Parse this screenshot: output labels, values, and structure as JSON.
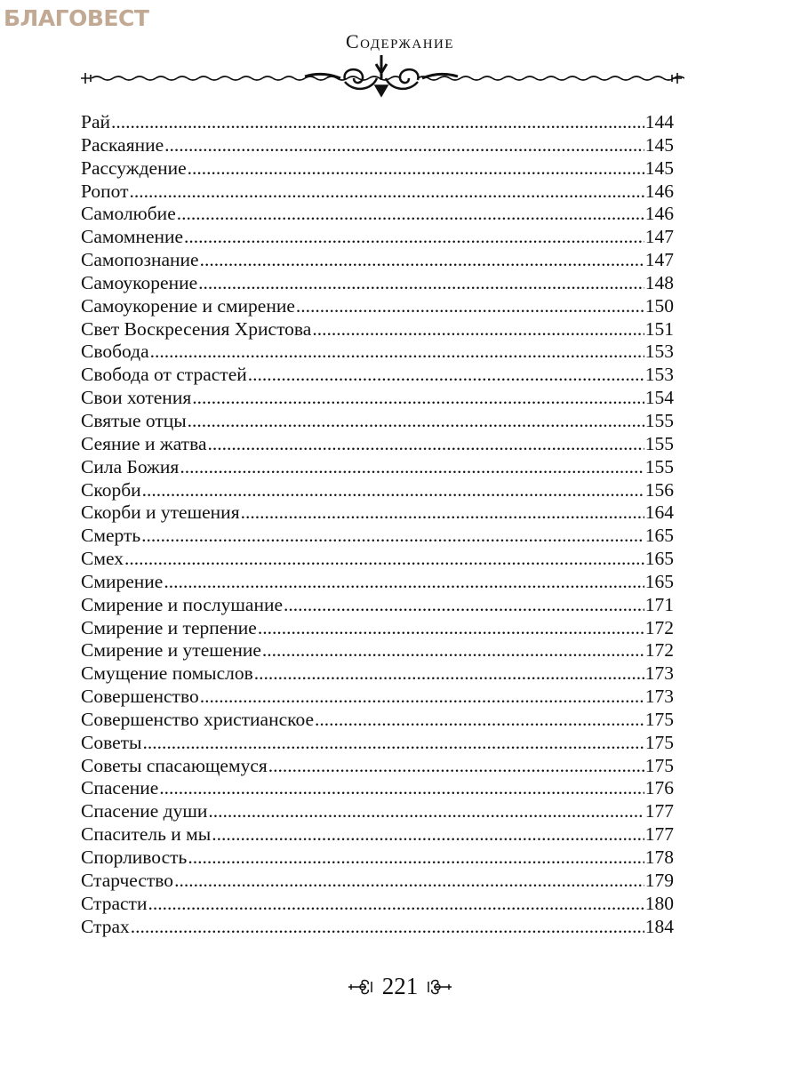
{
  "watermark": "БЛАГОВЕСТ",
  "title": "Содержание",
  "entries": [
    {
      "label": "Рай",
      "page": "144"
    },
    {
      "label": "Раскаяние",
      "page": "145"
    },
    {
      "label": "Рассуждение",
      "page": "145"
    },
    {
      "label": "Ропот",
      "page": "146"
    },
    {
      "label": "Самолюбие",
      "page": "146"
    },
    {
      "label": "Самомнение",
      "page": "147"
    },
    {
      "label": "Самопознание",
      "page": "147"
    },
    {
      "label": "Самоукорение",
      "page": "148"
    },
    {
      "label": "Самоукорение и смирение",
      "page": "150"
    },
    {
      "label": "Свет Воскресения Христова",
      "page": "151"
    },
    {
      "label": "Свобода",
      "page": "153"
    },
    {
      "label": "Свобода от страстей",
      "page": "153"
    },
    {
      "label": "Свои хотения",
      "page": "154"
    },
    {
      "label": "Святые отцы",
      "page": "155"
    },
    {
      "label": "Сеяние и жатва",
      "page": "155"
    },
    {
      "label": "Сила Божия",
      "page": "155"
    },
    {
      "label": "Скорби",
      "page": "156"
    },
    {
      "label": "Скорби и утешения",
      "page": "164"
    },
    {
      "label": "Смерть",
      "page": "165"
    },
    {
      "label": "Смех",
      "page": "165"
    },
    {
      "label": "Смирение",
      "page": "165"
    },
    {
      "label": "Смирение и послушание",
      "page": "171"
    },
    {
      "label": "Смирение и терпение",
      "page": "172"
    },
    {
      "label": "Смирение и утешение",
      "page": "172"
    },
    {
      "label": "Смущение помыслов",
      "page": "173"
    },
    {
      "label": "Совершенство",
      "page": "173"
    },
    {
      "label": "Совершенство христианское",
      "page": "175"
    },
    {
      "label": "Советы",
      "page": "175"
    },
    {
      "label": "Советы спасающемуся",
      "page": "175"
    },
    {
      "label": "Спасение",
      "page": "176"
    },
    {
      "label": "Спасение души",
      "page": "177"
    },
    {
      "label": "Спаситель и мы",
      "page": "177"
    },
    {
      "label": "Спорливость",
      "page": "178"
    },
    {
      "label": "Старчество",
      "page": "179"
    },
    {
      "label": "Страсти",
      "page": "180"
    },
    {
      "label": "Страх",
      "page": "184"
    }
  ],
  "page_number": "221"
}
